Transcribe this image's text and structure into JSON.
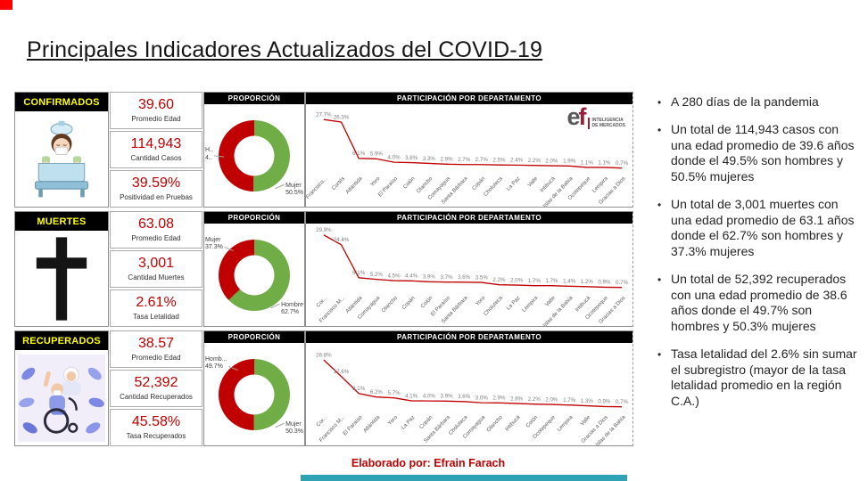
{
  "page": {
    "title": "Principales Indicadores Actualizados del COVID-19",
    "footer": "Elaborado por: Efrain Farach"
  },
  "logo": {
    "e": "e",
    "f": "f",
    "tagline1": "INTELIGENCIA",
    "tagline2": "DE MERCADOS"
  },
  "headers": {
    "proportion": "PROPORCIÓN",
    "participation": "PARTICIPACIÓN POR DEPARTAMENTO"
  },
  "rows": [
    {
      "label": "CONFIRMADOS",
      "stats": [
        {
          "value": "39.60",
          "label": "Promedio Edad"
        },
        {
          "value": "114,943",
          "label": "Cantidad Casos"
        },
        {
          "value": "39.59%",
          "label": "Positividad en Pruebas"
        }
      ]
    },
    {
      "label": "MUERTES",
      "stats": [
        {
          "value": "63.08",
          "label": "Promedio Edad"
        },
        {
          "value": "3,001",
          "label": "Cantidad Muertes"
        },
        {
          "value": "2.61%",
          "label": "Tasa Letalidad"
        }
      ]
    },
    {
      "label": "RECUPERADOS",
      "stats": [
        {
          "value": "38.57",
          "label": "Promedio Edad"
        },
        {
          "value": "52,392",
          "label": "Cantidad Recuperados"
        },
        {
          "value": "45.58%",
          "label": "Tasa Recuperados"
        }
      ]
    }
  ],
  "bullets": [
    "A 280 días de la pandemia",
    "Un total de 114,943 casos con una edad promedio de 39.6 años donde el 49.5% son hombres y 50.5% mujeres",
    "Un total de 3,001 muertes con una edad promedio de 63.1 años donde el 62.7% son hombres y 37.3% mujeres",
    "Un total de 52,392 recuperados con una edad promedio de 38.6 años donde el 49.7% son hombres y 50.3% mujeres",
    "Tasa letalidad del 2.6%  sin sumar el subregistro (mayor de la tasa letalidad promedio en la región C.A.)"
  ],
  "chart_data": [
    {
      "type": "pie",
      "group": "CONFIRMADOS",
      "title": "PROPORCIÓN",
      "slices": [
        {
          "label": "Mujer",
          "value": 50.5,
          "color": "#70AD47"
        },
        {
          "label": "Hombre",
          "value": 49.5,
          "color": "#C00000"
        }
      ],
      "callouts": [
        {
          "lines": [
            "H..",
            "4.."
          ],
          "pos": "left-mid"
        },
        {
          "lines": [
            "Mujer",
            "50.5%"
          ],
          "pos": "right-bottom"
        }
      ]
    },
    {
      "type": "line",
      "group": "CONFIRMADOS",
      "title": "PARTICIPACIÓN POR DEPARTAMENTO",
      "ylim": [
        0,
        30
      ],
      "line_color": "#C00000",
      "categories": [
        "Francisco...",
        "Cortés",
        "Atlántida",
        "Yoro",
        "El Paraíso",
        "Colón",
        "Olancho",
        "Comayagua",
        "Santa Bárbara",
        "Copán",
        "Choluteca",
        "La Paz",
        "Valle",
        "Intibucá",
        "Islas de la Bahía",
        "Ocotepeque",
        "Lempira",
        "Gracias a Dios"
      ],
      "values": [
        27.7,
        26.3,
        6.1,
        5.9,
        4.0,
        3.8,
        3.3,
        2.9,
        2.7,
        2.7,
        2.5,
        2.4,
        2.2,
        2.0,
        1.9,
        1.1,
        1.1,
        0.7
      ]
    },
    {
      "type": "pie",
      "group": "MUERTES",
      "title": "PROPORCIÓN",
      "slices": [
        {
          "label": "Hombre",
          "value": 62.7,
          "color": "#70AD47"
        },
        {
          "label": "Mujer",
          "value": 37.3,
          "color": "#C00000"
        }
      ],
      "callouts": [
        {
          "lines": [
            "Mujer",
            "37.3%"
          ],
          "pos": "left-top"
        },
        {
          "lines": [
            "Hombre",
            "62.7%"
          ],
          "pos": "right-bottom"
        }
      ]
    },
    {
      "type": "line",
      "group": "MUERTES",
      "title": "PARTICIPACIÓN POR DEPARTAMENTO",
      "ylim": [
        0,
        30
      ],
      "line_color": "#C00000",
      "categories": [
        "Cor...",
        "Francisco M...",
        "Atlántida",
        "Comayagua",
        "Olancho",
        "Copán",
        "Colón",
        "El Paraíso",
        "Santa Bárbara",
        "Yoro",
        "Choluteca",
        "La Paz",
        "Lempira",
        "Valle",
        "Islas de la Bahía",
        "Intibucá",
        "Ocotepeque",
        "Gracias a Dios"
      ],
      "values": [
        29.9,
        24.4,
        6.1,
        5.2,
        4.5,
        4.4,
        3.9,
        3.7,
        3.6,
        3.5,
        2.2,
        2.0,
        1.7,
        1.7,
        1.4,
        1.2,
        0.9,
        0.7
      ]
    },
    {
      "type": "pie",
      "group": "RECUPERADOS",
      "title": "PROPORCIÓN",
      "slices": [
        {
          "label": "Mujer",
          "value": 50.3,
          "color": "#70AD47"
        },
        {
          "label": "Hombre",
          "value": 49.7,
          "color": "#C00000"
        }
      ],
      "callouts": [
        {
          "lines": [
            "Homb...",
            "49.7%"
          ],
          "pos": "left-top"
        },
        {
          "lines": [
            "Mujer",
            "50.3%"
          ],
          "pos": "right-bottom"
        }
      ]
    },
    {
      "type": "line",
      "group": "RECUPERADOS",
      "title": "PARTICIPACIÓN POR DEPARTAMENTO",
      "ylim": [
        0,
        30
      ],
      "line_color": "#C00000",
      "categories": [
        "Cor...",
        "Francisco M...",
        "El Paraíso",
        "Atlántida",
        "Yoro",
        "La Paz",
        "Copán",
        "Santa Bárbara",
        "Choluteca",
        "Comayagua",
        "Olancho",
        "Intibucá",
        "Colón",
        "Ocotepeque",
        "Lempira",
        "Valle",
        "Gracias a Dios",
        "Islas de la Bahía"
      ],
      "values": [
        26.8,
        17.6,
        8.1,
        6.2,
        5.7,
        4.1,
        4.0,
        3.9,
        3.6,
        3.0,
        2.9,
        2.6,
        2.2,
        2.0,
        1.7,
        1.3,
        0.9,
        0.7
      ]
    }
  ]
}
